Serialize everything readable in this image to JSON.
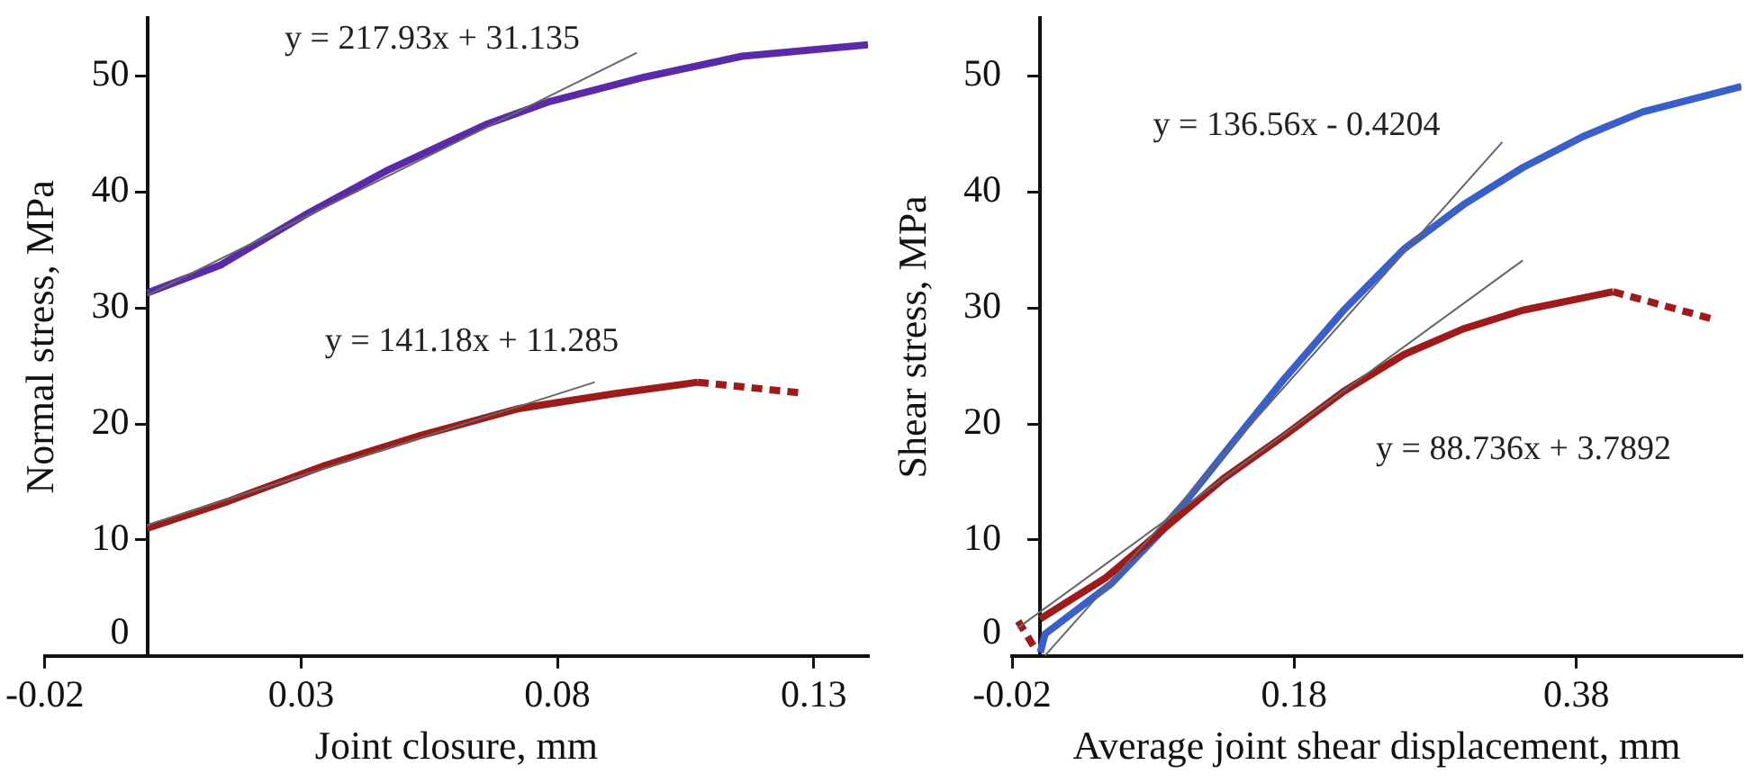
{
  "chart_data": [
    {
      "type": "line",
      "xlabel": "Joint closure, mm",
      "ylabel": "Normal stress, MPa",
      "xlim": [
        -0.02,
        0.1406
      ],
      "xticks": [
        -0.02,
        0.03,
        0.08,
        0.13
      ],
      "ylim": [
        0,
        55
      ],
      "yticks": [
        0,
        10,
        20,
        30,
        40,
        50
      ],
      "grid": false,
      "legend": false,
      "marker": "none",
      "series": [
        {
          "color": "#5b2aa8",
          "x": [
            0,
            0.0143,
            0.0307,
            0.047,
            0.066,
            0.0785,
            0.097,
            0.116,
            0.1406
          ],
          "values": [
            31.3,
            33.7,
            38.0,
            41.9,
            45.8,
            47.8,
            49.9,
            51.7,
            52.7
          ]
        },
        {
          "color": "#9e1b1b",
          "x": [
            0,
            0.0156,
            0.0345,
            0.0533,
            0.0722,
            0.091,
            0.1074
          ],
          "values": [
            11.0,
            13.3,
            16.4,
            19.0,
            21.3,
            22.6,
            23.6
          ]
        },
        {
          "color": "#9e1b1b",
          "line_style": "dashed",
          "x": [
            0.1074,
            0.127
          ],
          "values": [
            23.6,
            22.7
          ]
        },
        {
          "color": "#666666",
          "x": [
            0,
            0.0955
          ],
          "values": [
            31.1,
            52.0
          ]
        },
        {
          "color": "#666666",
          "x": [
            0,
            0.0873
          ],
          "values": [
            11.3,
            23.6
          ]
        }
      ],
      "annotations": [
        "y = 217.93x + 31.135",
        "y = 141.18x + 11.285"
      ]
    },
    {
      "type": "line",
      "xlabel": "Average joint shear displacement, mm",
      "ylabel": "Shear stress, MPa",
      "xlim": [
        -0.02,
        0.497
      ],
      "xticks": [
        -0.02,
        0.18,
        0.38
      ],
      "ylim": [
        0,
        55
      ],
      "yticks": [
        0,
        10,
        20,
        30,
        40,
        50
      ],
      "grid": false,
      "legend": false,
      "marker": "none",
      "series": [
        {
          "color": "#3a5fc8",
          "x": [
            0,
            0.0034,
            0.05,
            0.088,
            0.13,
            0.173,
            0.215,
            0.258,
            0.3,
            0.342,
            0.385,
            0.427,
            0.497
          ],
          "values": [
            0.3,
            1.9,
            6.2,
            11.0,
            17.4,
            23.9,
            29.8,
            35.1,
            38.9,
            42.1,
            44.8,
            46.9,
            49.1
          ]
        },
        {
          "color": "#9e1b1b",
          "line_style": "dashed",
          "x": [
            -0.0157,
            -0.003
          ],
          "values": [
            3.0,
            0.5
          ]
        },
        {
          "color": "#9e1b1b",
          "x": [
            0,
            0.046,
            0.088,
            0.13,
            0.173,
            0.215,
            0.258,
            0.3,
            0.342,
            0.406
          ],
          "values": [
            3.2,
            6.7,
            11.0,
            15.3,
            19.0,
            22.8,
            26.0,
            28.2,
            29.8,
            31.4
          ]
        },
        {
          "color": "#9e1b1b",
          "line_style": "dashed",
          "x": [
            0.406,
            0.478
          ],
          "values": [
            31.4,
            29.0
          ]
        },
        {
          "color": "#666666",
          "x": [
            0.0031,
            0.3275
          ],
          "values": [
            0,
            44.3
          ]
        },
        {
          "color": "#666666",
          "x": [
            -0.016,
            0.342
          ],
          "values": [
            2.4,
            34.1
          ]
        }
      ],
      "annotations": [
        "y = 136.56x - 0.4204",
        "y = 88.736x + 3.7892"
      ]
    }
  ]
}
